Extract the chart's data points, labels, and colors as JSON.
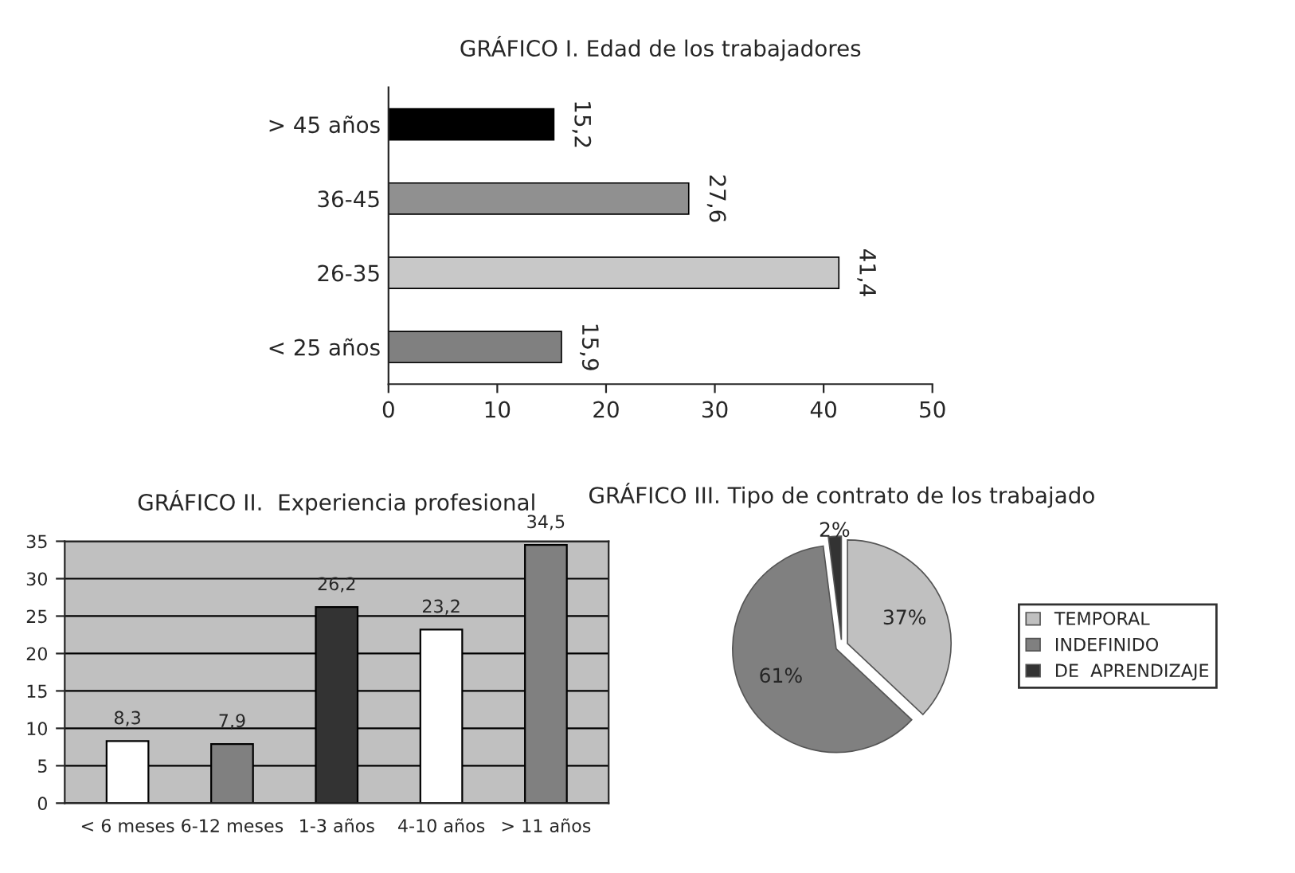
{
  "chart_data": [
    {
      "type": "bar",
      "title": "GRÁFICO I. Edad de los trabajadores",
      "orientation": "horizontal",
      "categories": [
        "> 45 años",
        "36-45",
        "26-35",
        "< 25 años"
      ],
      "values": [
        15.2,
        27.6,
        41.4,
        15.9
      ],
      "colors": [
        "#000000",
        "#909090",
        "#c8c8c8",
        "#808080"
      ],
      "value_labels": [
        "15,2",
        "27,6",
        "41,4",
        "15,9"
      ],
      "xlim": [
        0,
        50
      ],
      "xticks": [
        0,
        10,
        20,
        30,
        40,
        50
      ],
      "grid": false
    },
    {
      "type": "bar",
      "title": "GRÁFICO II.  Experiencia profesional",
      "categories": [
        "< 6 meses",
        "6-12 meses",
        "1-3 años",
        "4-10 años",
        "> 11 años"
      ],
      "values": [
        8.3,
        7.9,
        26.2,
        23.2,
        34.5
      ],
      "colors": [
        "#ffffff",
        "#808080",
        "#333333",
        "#ffffff",
        "#808080"
      ],
      "value_labels": [
        "8,3",
        "7,9",
        "26,2",
        "23,2",
        "34,5"
      ],
      "ylim": [
        0,
        35
      ],
      "yticks": [
        0,
        5,
        10,
        15,
        20,
        25,
        30,
        35
      ],
      "grid": "y"
    },
    {
      "type": "pie",
      "title": "GRÁFICO III. Tipo de contrato de los trabajado",
      "categories": [
        "TEMPORAL",
        "INDEFINIDO",
        "DE  APRENDIZAJE"
      ],
      "values": [
        37,
        61,
        2
      ],
      "colors": [
        "#c0c0c0",
        "#808080",
        "#333333"
      ],
      "value_labels": [
        "37%",
        "61%",
        "2%"
      ],
      "legend": "right"
    }
  ]
}
